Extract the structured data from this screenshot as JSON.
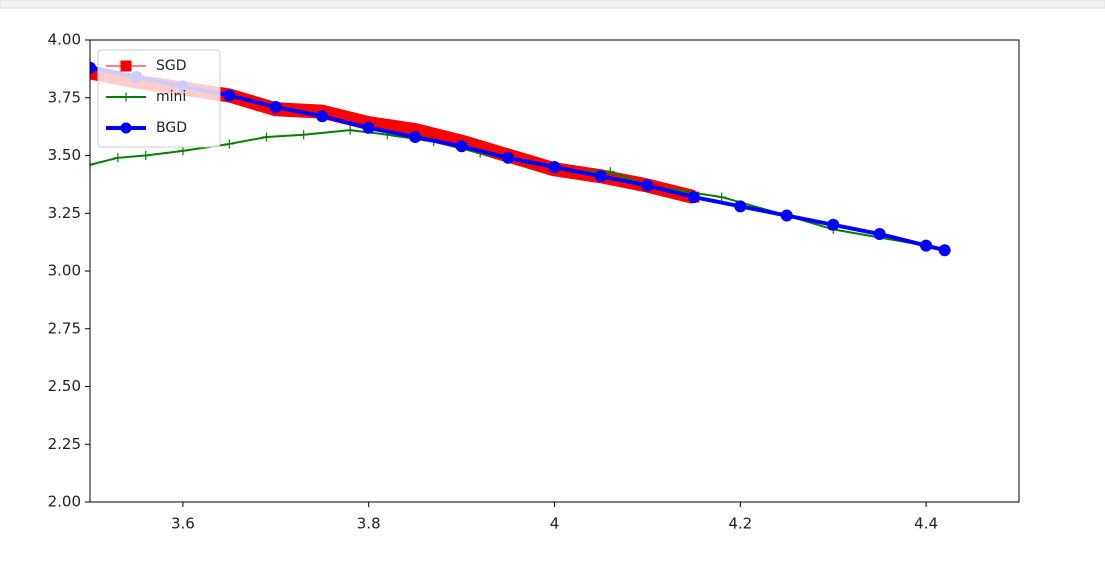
{
  "chart_data": {
    "type": "line",
    "xlim": [
      3.5,
      4.5
    ],
    "xticks": [
      3.6,
      3.8,
      4.0,
      4.2,
      4.4
    ],
    "ylim": [
      2.0,
      4.0
    ],
    "yticks": [
      {
        "value": 2.0,
        "label": "2.00"
      },
      {
        "value": 2.25,
        "label": "2.25"
      },
      {
        "value": 2.5,
        "label": "2.50"
      },
      {
        "value": 2.75,
        "label": "2.75"
      },
      {
        "value": 3.0,
        "label": "3.00"
      },
      {
        "value": 3.25,
        "label": "3.25"
      },
      {
        "value": 3.5,
        "label": "3.50"
      },
      {
        "value": 3.75,
        "label": "3.75"
      },
      {
        "value": 4.0,
        "label": "4.00"
      }
    ],
    "legend": "upper left",
    "series": [
      {
        "name": "SGD",
        "color": "#ff0000",
        "marker": "square",
        "x": [
          3.5,
          3.55,
          3.6,
          3.65,
          3.7,
          3.75,
          3.8,
          3.85,
          3.9,
          3.95,
          4.0,
          4.05,
          4.1,
          4.15
        ],
        "values": [
          3.86,
          3.82,
          3.79,
          3.76,
          3.7,
          3.69,
          3.64,
          3.61,
          3.56,
          3.5,
          3.44,
          3.41,
          3.37,
          3.32
        ]
      },
      {
        "name": "mini",
        "color": "#008000",
        "marker": "plus",
        "x": [
          3.5,
          3.53,
          3.56,
          3.6,
          3.65,
          3.69,
          3.73,
          3.78,
          3.82,
          3.87,
          3.92,
          3.97,
          4.02,
          4.06,
          4.1,
          4.18,
          4.25,
          4.3,
          4.4
        ],
        "values": [
          3.46,
          3.49,
          3.5,
          3.52,
          3.55,
          3.58,
          3.59,
          3.61,
          3.59,
          3.56,
          3.51,
          3.47,
          3.43,
          3.43,
          3.37,
          3.32,
          3.24,
          3.18,
          3.11
        ]
      },
      {
        "name": "BGD",
        "color": "#0000ff",
        "marker": "circle",
        "x": [
          3.5,
          3.55,
          3.6,
          3.65,
          3.7,
          3.75,
          3.8,
          3.85,
          3.9,
          3.95,
          4.0,
          4.05,
          4.1,
          4.15,
          4.2,
          4.25,
          4.3,
          4.35,
          4.4,
          4.42
        ],
        "values": [
          3.88,
          3.84,
          3.8,
          3.76,
          3.71,
          3.67,
          3.62,
          3.58,
          3.54,
          3.49,
          3.45,
          3.41,
          3.37,
          3.32,
          3.28,
          3.24,
          3.2,
          3.16,
          3.11,
          3.09
        ]
      }
    ]
  }
}
